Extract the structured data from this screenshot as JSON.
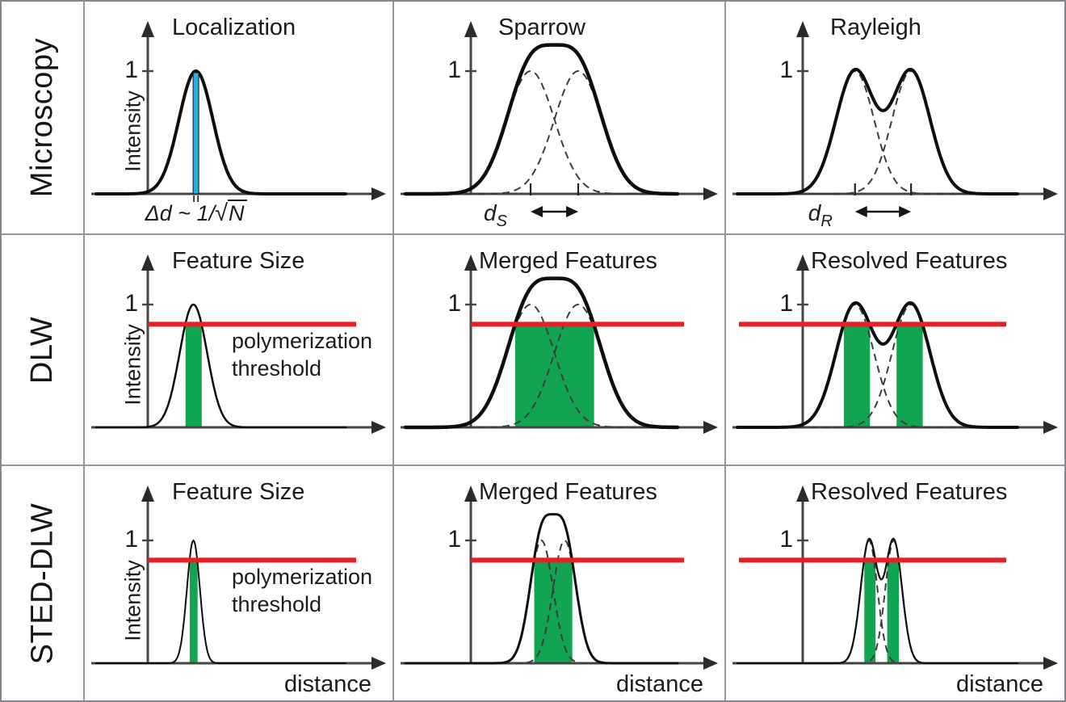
{
  "figure": {
    "rows": [
      {
        "label": "Microscopy"
      },
      {
        "label": "DLW"
      },
      {
        "label": "STED-DLW"
      }
    ]
  },
  "labels": {
    "ylabel": "Intensity",
    "ytick": "1",
    "xlabel": "distance",
    "threshold_label_line1": "polymerization",
    "threshold_label_line2": "threshold"
  },
  "colors": {
    "threshold_red": "#ee1c23",
    "feature_green": "#12a551",
    "marker_blue": "#2aabe2",
    "curve_black": "#0e0e0e",
    "dashed_gray": "#3c3c3c",
    "axis_gray": "#454545",
    "grid_gray": "#95959a"
  },
  "chart_data": [
    {
      "row": "Microscopy",
      "col": "Localization",
      "title": "Localization",
      "type": "line",
      "ylabel": "Intensity",
      "ytick": "1",
      "xlabel": null,
      "components": [
        {
          "center": 0.4,
          "sigma": 0.068,
          "amp": 1.0
        }
      ],
      "component_style": "solid",
      "show_sum": false,
      "threshold": null,
      "threshold_label": false,
      "marker": {
        "type": "localization-uncertainty-bar",
        "at": 0.4
      },
      "separation": null,
      "formula": {
        "prefix": "Δd ~ 1/",
        "sqrt_sign": "√",
        "radicand": "N"
      },
      "stroke_width": 4
    },
    {
      "row": "Microscopy",
      "col": "Sparrow",
      "title": "Sparrow",
      "type": "line",
      "ylabel": null,
      "ytick": "1",
      "xlabel": null,
      "components": [
        {
          "center": 0.46,
          "sigma": 0.0875,
          "amp": 1.0
        },
        {
          "center": 0.635,
          "sigma": 0.0875,
          "amp": 1.0
        }
      ],
      "component_style": "dashed",
      "show_sum": true,
      "threshold": null,
      "threshold_label": false,
      "marker": null,
      "separation": {
        "label_base": "d",
        "label_sub": "S",
        "from": 0.46,
        "to": 0.635
      },
      "formula": null,
      "stroke_width": 4.5
    },
    {
      "row": "Microscopy",
      "col": "Rayleigh",
      "title": "Rayleigh",
      "type": "line",
      "ylabel": null,
      "ytick": "1",
      "xlabel": null,
      "components": [
        {
          "center": 0.42,
          "sigma": 0.068,
          "amp": 1.0
        },
        {
          "center": 0.62,
          "sigma": 0.068,
          "amp": 1.0
        }
      ],
      "component_style": "dashed",
      "show_sum": true,
      "threshold": null,
      "threshold_label": false,
      "marker": null,
      "separation": {
        "label_base": "d",
        "label_sub": "R",
        "from": 0.42,
        "to": 0.62
      },
      "formula": null,
      "stroke_width": 4
    },
    {
      "row": "DLW",
      "col": "Feature Size",
      "title": "Feature Size",
      "type": "line",
      "ylabel": "Intensity",
      "ytick": "1",
      "xlabel": null,
      "components": [
        {
          "center": 0.39,
          "sigma": 0.055,
          "amp": 1.0
        }
      ],
      "component_style": "solid",
      "show_sum": false,
      "threshold": 0.84,
      "threshold_label": true,
      "marker": null,
      "separation": null,
      "formula": null,
      "stroke_width": 2.5
    },
    {
      "row": "DLW",
      "col": "Merged Features",
      "title": "Merged Features",
      "type": "line",
      "ylabel": null,
      "ytick": "1",
      "xlabel": null,
      "components": [
        {
          "center": 0.46,
          "sigma": 0.0875,
          "amp": 1.0
        },
        {
          "center": 0.635,
          "sigma": 0.0875,
          "amp": 1.0
        }
      ],
      "component_style": "dashed",
      "show_sum": true,
      "threshold": 0.84,
      "threshold_label": false,
      "marker": null,
      "separation": null,
      "formula": null,
      "stroke_width": 4.5
    },
    {
      "row": "DLW",
      "col": "Resolved Features",
      "title": "Resolved Features",
      "type": "line",
      "ylabel": null,
      "ytick": "1",
      "xlabel": null,
      "components": [
        {
          "center": 0.42,
          "sigma": 0.068,
          "amp": 1.0
        },
        {
          "center": 0.62,
          "sigma": 0.068,
          "amp": 1.0
        }
      ],
      "component_style": "dashed",
      "show_sum": true,
      "threshold": 0.84,
      "threshold_label": false,
      "marker": null,
      "separation": null,
      "formula": null,
      "stroke_width": 4
    },
    {
      "row": "STED-DLW",
      "col": "Feature Size",
      "title": "Feature Size",
      "type": "line",
      "ylabel": "Intensity",
      "ytick": "1",
      "xlabel": "distance",
      "components": [
        {
          "center": 0.39,
          "sigma": 0.026,
          "amp": 1.0
        }
      ],
      "component_style": "solid",
      "show_sum": false,
      "threshold": 0.84,
      "threshold_label": true,
      "marker": null,
      "separation": null,
      "formula": null,
      "stroke_width": 2
    },
    {
      "row": "STED-DLW",
      "col": "Merged Features",
      "title": "Merged Features",
      "type": "line",
      "ylabel": null,
      "ytick": "1",
      "xlabel": "distance",
      "components": [
        {
          "center": 0.5,
          "sigma": 0.0425,
          "amp": 1.0
        },
        {
          "center": 0.585,
          "sigma": 0.0425,
          "amp": 1.0
        }
      ],
      "component_style": "dashed",
      "show_sum": true,
      "threshold": 0.84,
      "threshold_label": false,
      "marker": null,
      "separation": null,
      "formula": null,
      "stroke_width": 3
    },
    {
      "row": "STED-DLW",
      "col": "Resolved Features",
      "title": "Resolved Features",
      "type": "line",
      "ylabel": null,
      "ytick": "1",
      "xlabel": "distance",
      "components": [
        {
          "center": 0.47,
          "sigma": 0.03,
          "amp": 1.0
        },
        {
          "center": 0.558,
          "sigma": 0.03,
          "amp": 1.0
        }
      ],
      "component_style": "dashed",
      "show_sum": true,
      "threshold": 0.84,
      "threshold_label": false,
      "marker": null,
      "separation": null,
      "formula": null,
      "stroke_width": 2.2
    }
  ]
}
